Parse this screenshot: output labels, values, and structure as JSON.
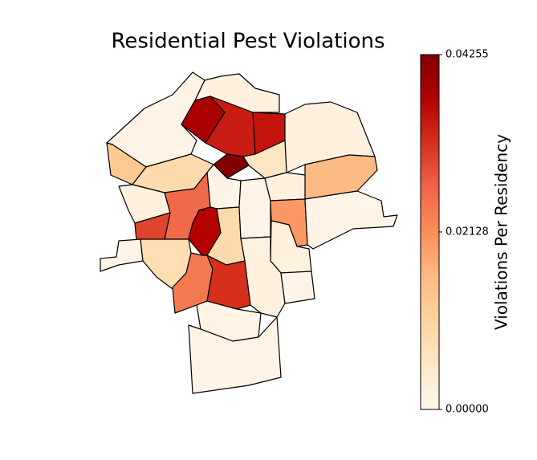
{
  "chart_data": {
    "type": "choropleth",
    "title": "Residential Pest Violations",
    "colorbar_label": "Violations Per Residency",
    "clim": [
      0,
      0.04255
    ],
    "cticks": [
      {
        "value": 0,
        "label": "0.00000"
      },
      0.02128,
      0.04255
    ],
    "colorscale": [
      "#fff7ec",
      "#fee8c8",
      "#fdd49e",
      "#fdbb84",
      "#fc8d59",
      "#ef6548",
      "#d7301f",
      "#b30000",
      "#7f0000"
    ],
    "values": [
      0.001,
      0.002,
      0.038,
      0.034,
      0.035,
      0.042,
      0.002,
      0.006,
      0.013,
      0.009,
      0.001,
      0.016,
      0.002,
      0.026,
      0.03,
      0.037,
      0.009,
      0.001,
      0.002,
      0.02,
      0.001,
      0.002,
      0.001,
      0.008,
      0.024,
      0.032,
      0.002,
      0.001,
      0.001,
      0.001
    ]
  }
}
